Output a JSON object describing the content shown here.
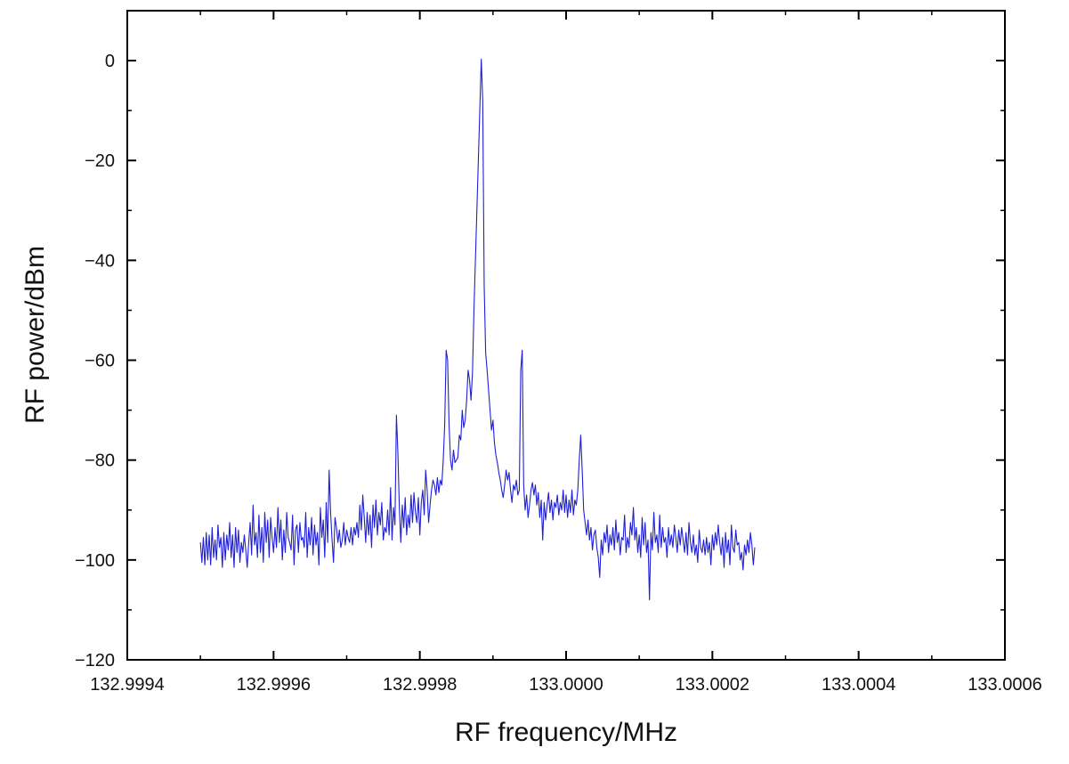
{
  "chart_data": {
    "type": "line",
    "title": "",
    "xlabel": "RF frequency/MHz",
    "ylabel": "RF power/dBm",
    "xlim": [
      132.9994,
      133.0006
    ],
    "ylim": [
      -120,
      10
    ],
    "x_ticks": [
      "132.9994",
      "132.9996",
      "132.9998",
      "133.0000",
      "133.0002",
      "133.0004",
      "133.0006"
    ],
    "y_ticks": [
      "0",
      "−20",
      "−40",
      "−60",
      "−80",
      "−100",
      "−120"
    ],
    "grid": false,
    "legend": "none",
    "series": [
      {
        "color": "#1f1fd6",
        "x_start": 132.9995,
        "x_step": 2e-06,
        "values": [
          -96.5,
          -100.5,
          -95.5,
          -101.0,
          -94.5,
          -100.0,
          -95.0,
          -101.0,
          -93.5,
          -99.5,
          -96.0,
          -100.0,
          -93.0,
          -97.5,
          -95.5,
          -101.5,
          -94.5,
          -100.0,
          -95.0,
          -98.0,
          -92.5,
          -99.5,
          -95.0,
          -101.5,
          -93.5,
          -98.5,
          -94.0,
          -100.5,
          -96.5,
          -98.5,
          -95.0,
          -98.0,
          -101.5,
          -96.5,
          -92.5,
          -99.0,
          -89.0,
          -97.0,
          -94.5,
          -99.5,
          -91.0,
          -98.5,
          -93.5,
          -100.5,
          -90.5,
          -96.5,
          -92.0,
          -99.5,
          -91.5,
          -95.5,
          -98.5,
          -93.5,
          -97.5,
          -89.5,
          -96.5,
          -92.0,
          -100.0,
          -94.0,
          -98.5,
          -90.5,
          -95.5,
          -96.5,
          -98.0,
          -91.0,
          -101.0,
          -94.0,
          -93.0,
          -98.5,
          -92.5,
          -96.0,
          -95.5,
          -97.5,
          -90.5,
          -99.5,
          -93.5,
          -97.0,
          -91.5,
          -99.0,
          -93.0,
          -97.0,
          -94.5,
          -101.0,
          -89.5,
          -95.5,
          -92.0,
          -99.5,
          -88.5,
          -96.5,
          -82.0,
          -90.5,
          -96.0,
          -100.5,
          -91.5,
          -93.5,
          -96.5,
          -94.0,
          -97.5,
          -96.0,
          -92.5,
          -97.0,
          -94.0,
          -95.5,
          -96.5,
          -93.5,
          -97.0,
          -93.5,
          -95.0,
          -92.5,
          -95.5,
          -89.0,
          -94.0,
          -87.0,
          -91.5,
          -96.5,
          -90.5,
          -95.0,
          -91.0,
          -97.5,
          -89.0,
          -93.5,
          -88.0,
          -95.0,
          -90.5,
          -93.0,
          -88.5,
          -96.0,
          -93.5,
          -94.5,
          -90.0,
          -95.0,
          -85.5,
          -96.0,
          -89.5,
          -93.0,
          -71.0,
          -78.5,
          -89.5,
          -96.5,
          -89.0,
          -93.5,
          -87.5,
          -95.0,
          -91.0,
          -93.5,
          -87.0,
          -92.5,
          -86.5,
          -90.5,
          -92.5,
          -87.5,
          -95.0,
          -88.5,
          -86.0,
          -91.0,
          -82.0,
          -86.0,
          -92.5,
          -89.0,
          -86.0,
          -84.0,
          -85.0,
          -87.0,
          -83.5,
          -86.5,
          -84.0,
          -85.0,
          -80.0,
          -73.0,
          -58.0,
          -60.0,
          -73.0,
          -80.0,
          -82.0,
          -78.0,
          -80.5,
          -80.0,
          -79.5,
          -75.0,
          -76.0,
          -70.0,
          -73.5,
          -72.0,
          -68.0,
          -62.0,
          -64.0,
          -68.0,
          -62.5,
          -50.0,
          -40.0,
          -30.0,
          -20.0,
          -10.0,
          0.3,
          -8.0,
          -45.0,
          -58.5,
          -62.0,
          -66.0,
          -70.0,
          -74.0,
          -72.0,
          -76.5,
          -79.0,
          -80.5,
          -82.5,
          -84.0,
          -86.0,
          -87.5,
          -85.0,
          -82.0,
          -84.0,
          -82.5,
          -86.0,
          -88.5,
          -85.0,
          -86.0,
          -84.0,
          -87.0,
          -86.0,
          -62.0,
          -58.0,
          -85.0,
          -90.0,
          -87.0,
          -91.5,
          -89.0,
          -86.0,
          -84.5,
          -87.0,
          -85.0,
          -89.0,
          -86.5,
          -91.5,
          -88.0,
          -96.0,
          -88.5,
          -92.0,
          -89.0,
          -86.5,
          -90.5,
          -88.0,
          -92.0,
          -88.5,
          -89.5,
          -87.0,
          -91.0,
          -88.5,
          -90.0,
          -86.0,
          -90.5,
          -87.0,
          -91.5,
          -88.0,
          -90.5,
          -86.0,
          -91.0,
          -88.0,
          -89.0,
          -86.0,
          -80.0,
          -75.0,
          -82.0,
          -90.0,
          -92.5,
          -95.0,
          -92.0,
          -96.0,
          -93.5,
          -98.0,
          -95.0,
          -94.0,
          -97.5,
          -99.5,
          -103.5,
          -96.0,
          -99.0,
          -94.5,
          -96.5,
          -93.0,
          -98.5,
          -95.0,
          -97.0,
          -93.5,
          -98.0,
          -92.0,
          -96.5,
          -94.5,
          -99.0,
          -95.5,
          -96.0,
          -91.0,
          -98.5,
          -95.5,
          -97.5,
          -92.5,
          -95.0,
          -89.5,
          -96.0,
          -93.5,
          -98.5,
          -95.0,
          -99.5,
          -91.5,
          -97.0,
          -92.5,
          -98.5,
          -96.0,
          -108.0,
          -94.5,
          -98.0,
          -90.5,
          -96.5,
          -95.0,
          -98.5,
          -91.0,
          -97.5,
          -93.5,
          -96.5,
          -95.5,
          -99.5,
          -93.5,
          -97.0,
          -95.0,
          -97.5,
          -93.0,
          -95.5,
          -98.5,
          -94.0,
          -97.0,
          -93.5,
          -96.0,
          -98.5,
          -94.5,
          -99.0,
          -92.5,
          -96.5,
          -98.5,
          -95.0,
          -99.0,
          -97.0,
          -100.5,
          -94.0,
          -97.5,
          -98.5,
          -96.0,
          -99.0,
          -95.5,
          -98.5,
          -96.5,
          -101.0,
          -95.0,
          -98.0,
          -94.5,
          -97.0,
          -93.0,
          -96.5,
          -99.0,
          -95.5,
          -101.5,
          -94.5,
          -98.5,
          -96.0,
          -101.0,
          -93.0,
          -97.5,
          -98.5,
          -94.0,
          -97.0,
          -96.5,
          -100.0,
          -98.5,
          -102.0,
          -97.0,
          -99.0,
          -96.0,
          -98.5,
          -94.5,
          -97.0,
          -101.0,
          -97.5
        ]
      }
    ]
  }
}
